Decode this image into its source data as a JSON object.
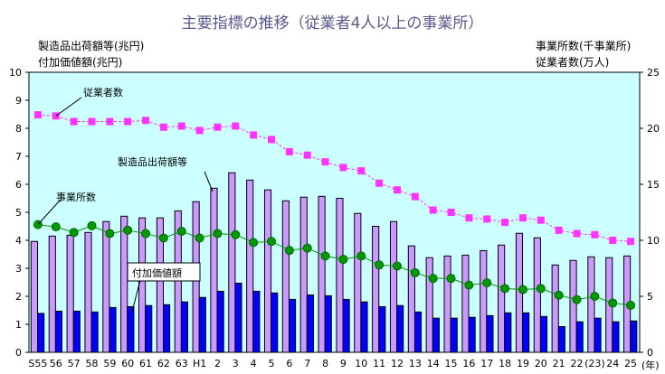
{
  "chart_data": {
    "type": "bar+line",
    "title": "主要指標の推移（従業者4人以上の事業所）",
    "ylabel_left": [
      "製造品出荷額等(兆円)",
      "付加価値額(兆円)"
    ],
    "ylabel_right": [
      "事業所数(千事業所)",
      "従業者数(万人)"
    ],
    "x_unit": "(年)",
    "ylim_left": [
      0,
      10
    ],
    "ylim_right": [
      0,
      25
    ],
    "yticks_left": [
      0,
      1,
      2,
      3,
      4,
      5,
      6,
      7,
      8,
      9,
      10
    ],
    "yticks_right": [
      0,
      5,
      10,
      15,
      20,
      25
    ],
    "grid": false,
    "categories": [
      "S55",
      "56",
      "57",
      "58",
      "59",
      "60",
      "61",
      "62",
      "63",
      "H1",
      "2",
      "3",
      "4",
      "5",
      "6",
      "7",
      "8",
      "9",
      "10",
      "11",
      "12",
      "13",
      "14",
      "15",
      "16",
      "17",
      "18",
      "19",
      "20",
      "21",
      "22",
      "(23)",
      "24",
      "25"
    ],
    "series": [
      {
        "name": "製造品出荷額等",
        "axis": "left",
        "kind": "bar",
        "color": "#cc99ff",
        "values": [
          3.96,
          4.15,
          4.18,
          4.28,
          4.67,
          4.86,
          4.8,
          4.8,
          5.05,
          5.38,
          5.86,
          6.41,
          6.15,
          5.8,
          5.41,
          5.54,
          5.57,
          5.5,
          4.96,
          4.5,
          4.67,
          3.8,
          3.38,
          3.44,
          3.47,
          3.63,
          3.83,
          4.25,
          4.09,
          3.12,
          3.28,
          3.41,
          3.38,
          3.44
        ]
      },
      {
        "name": "付加価値額",
        "axis": "left",
        "kind": "bar",
        "color": "#0000ff",
        "values": [
          1.39,
          1.47,
          1.47,
          1.44,
          1.6,
          1.63,
          1.67,
          1.7,
          1.8,
          1.96,
          2.18,
          2.47,
          2.18,
          2.12,
          1.89,
          2.05,
          2.02,
          1.89,
          1.8,
          1.63,
          1.67,
          1.44,
          1.22,
          1.22,
          1.25,
          1.31,
          1.41,
          1.41,
          1.28,
          0.92,
          1.09,
          1.22,
          1.09,
          1.12
        ]
      },
      {
        "name": "従業者数",
        "axis": "right",
        "kind": "line",
        "color": "#ff33ff",
        "values": [
          21.2,
          21.1,
          20.6,
          20.6,
          20.6,
          20.6,
          20.7,
          20.1,
          20.2,
          19.8,
          20.1,
          20.2,
          19.4,
          19.0,
          17.9,
          17.6,
          17.0,
          16.5,
          16.2,
          15.1,
          14.5,
          13.9,
          12.7,
          12.5,
          12.0,
          11.9,
          11.6,
          12.0,
          11.8,
          10.9,
          10.6,
          10.5,
          10.0,
          9.9
        ]
      },
      {
        "name": "事業所数",
        "axis": "right",
        "kind": "line",
        "color": "#009900",
        "values": [
          11.4,
          11.2,
          10.7,
          11.3,
          10.6,
          10.9,
          10.6,
          10.2,
          10.8,
          10.2,
          10.6,
          10.5,
          9.8,
          9.9,
          9.1,
          9.3,
          8.6,
          8.3,
          8.6,
          7.8,
          7.7,
          7.1,
          6.6,
          6.6,
          6.0,
          6.2,
          5.7,
          5.6,
          5.7,
          5.1,
          4.7,
          5.0,
          4.4,
          4.2
        ]
      }
    ],
    "plot_background": "#ccffff"
  }
}
